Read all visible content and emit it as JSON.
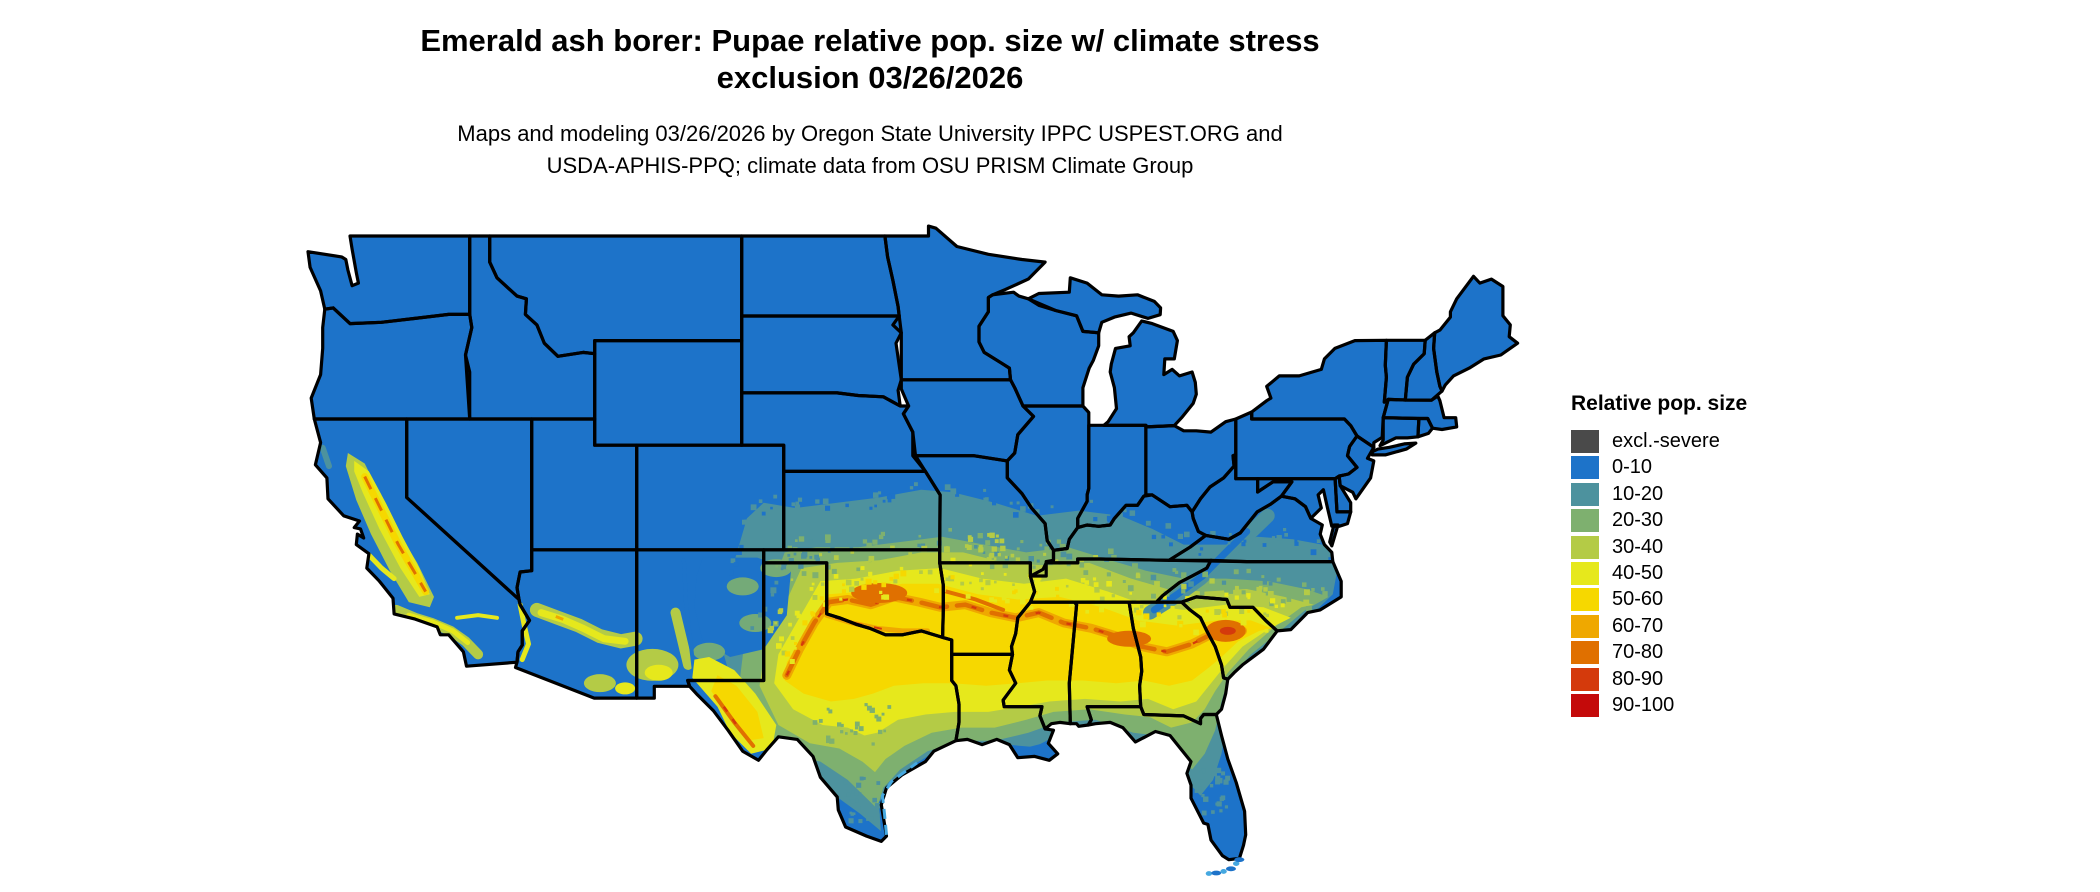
{
  "header": {
    "title_line1": "Emerald ash borer: Pupae relative pop. size w/ climate stress",
    "title_line2": "exclusion 03/26/2026",
    "subtitle_line1": "Maps and modeling 03/26/2026 by Oregon State University IPPC USPEST.ORG and",
    "subtitle_line2": "USDA-APHIS-PPQ; climate data from OSU PRISM Climate Group"
  },
  "legend": {
    "title": "Relative pop. size",
    "items": [
      {
        "label": "excl.-severe",
        "color": "#4a4a4a"
      },
      {
        "label": "0-10",
        "color": "#1d73c9"
      },
      {
        "label": "10-20",
        "color": "#4d929e"
      },
      {
        "label": "20-30",
        "color": "#7eb06f"
      },
      {
        "label": "30-40",
        "color": "#b4cb46"
      },
      {
        "label": "40-50",
        "color": "#e6e81c"
      },
      {
        "label": "50-60",
        "color": "#f6d800"
      },
      {
        "label": "60-70",
        "color": "#efa800"
      },
      {
        "label": "70-80",
        "color": "#e07000"
      },
      {
        "label": "80-90",
        "color": "#d43a0c"
      },
      {
        "label": "90-100",
        "color": "#c40a0a"
      }
    ]
  },
  "map": {
    "border_color": "#000000",
    "background_color": "#ffffff",
    "land_base_color": "#1d73c9",
    "shallow_water_color": "#45a8e0"
  }
}
